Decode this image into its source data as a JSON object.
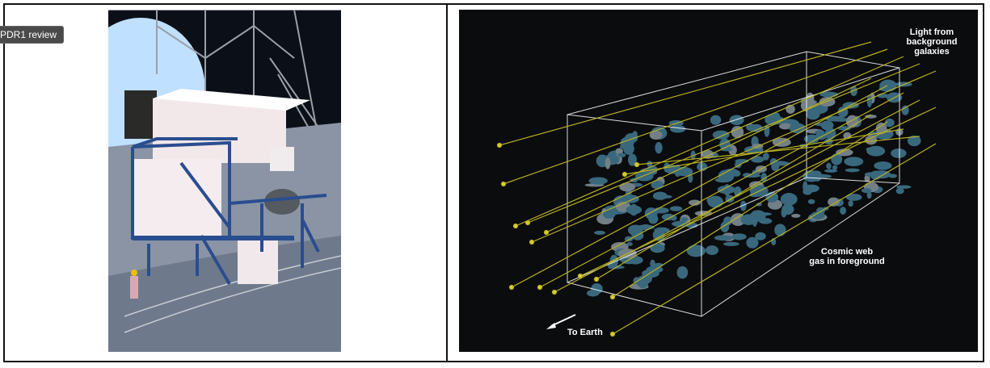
{
  "tooltip": {
    "text": "PDR1 review"
  },
  "right_figure": {
    "label_light": "Light from background galaxies",
    "label_light_lines": [
      "Light from",
      "background",
      "galaxies"
    ],
    "label_gas_lines": [
      "Cosmic web",
      "gas in foreground"
    ],
    "label_earth": "To Earth"
  },
  "colors": {
    "ray": "#b8b020",
    "gas": "#5fb4d8",
    "structure": "#2a4d8f"
  }
}
